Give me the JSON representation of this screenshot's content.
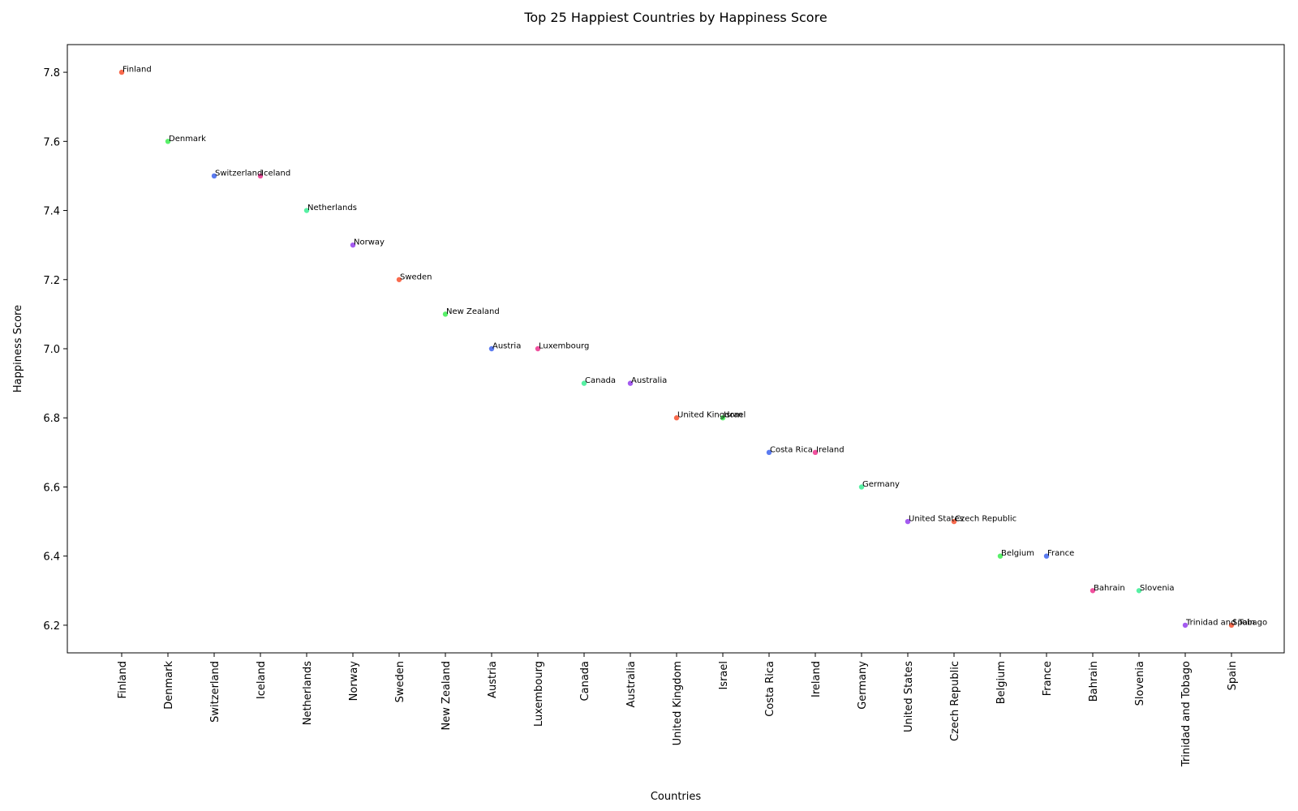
{
  "chart_data": {
    "type": "scatter",
    "title": "Top 25 Happiest Countries by Happiness Score",
    "xlabel": "Countries",
    "ylabel": "Happiness Score",
    "ylim": [
      6.12,
      7.88
    ],
    "yticks": [
      6.2,
      6.4,
      6.6,
      6.8,
      7.0,
      7.2,
      7.4,
      7.6,
      7.8
    ],
    "categories": [
      "Finland",
      "Denmark",
      "Switzerland",
      "Iceland",
      "Netherlands",
      "Norway",
      "Sweden",
      "New Zealand",
      "Austria",
      "Luxembourg",
      "Canada",
      "Australia",
      "United Kingdom",
      "Israel",
      "Costa Rica",
      "Ireland",
      "Germany",
      "United States",
      "Czech Republic",
      "Belgium",
      "France",
      "Bahrain",
      "Slovenia",
      "Trinidad and Tobago",
      "Spain"
    ],
    "points": [
      {
        "x": "Finland",
        "y": 7.8,
        "label": "Finland",
        "color": "#f96b4e"
      },
      {
        "x": "Denmark",
        "y": 7.6,
        "label": "Denmark",
        "color": "#59f06a"
      },
      {
        "x": "Switzerland",
        "y": 7.5,
        "label": "Switzerland",
        "color": "#5b7bf0"
      },
      {
        "x": "Iceland",
        "y": 7.5,
        "label": "Iceland",
        "color": "#f0519e"
      },
      {
        "x": "Netherlands",
        "y": 7.4,
        "label": "Netherlands",
        "color": "#57f0a4"
      },
      {
        "x": "Norway",
        "y": 7.3,
        "label": "Norway",
        "color": "#a45bf0"
      },
      {
        "x": "Sweden",
        "y": 7.2,
        "label": "Sweden",
        "color": "#f96b4e"
      },
      {
        "x": "New Zealand",
        "y": 7.1,
        "label": "New Zealand",
        "color": "#59f06a"
      },
      {
        "x": "Austria",
        "y": 7.0,
        "label": "Austria",
        "color": "#5b7bf0"
      },
      {
        "x": "Luxembourg",
        "y": 7.0,
        "label": "Luxembourg",
        "color": "#f0519e"
      },
      {
        "x": "Canada",
        "y": 6.9,
        "label": "Canada",
        "color": "#57f0a4"
      },
      {
        "x": "Australia",
        "y": 6.9,
        "label": "Australia",
        "color": "#a45bf0"
      },
      {
        "x": "United Kingdom",
        "y": 6.8,
        "label": "United Kingdom",
        "color": "#f96b4e"
      },
      {
        "x": "Israel",
        "y": 6.8,
        "label": "Israel",
        "color": "#59f06a"
      },
      {
        "x": "Costa Rica",
        "y": 6.7,
        "label": "Costa Rica",
        "color": "#5b7bf0"
      },
      {
        "x": "Ireland",
        "y": 6.7,
        "label": "Ireland",
        "color": "#f0519e"
      },
      {
        "x": "Germany",
        "y": 6.6,
        "label": "Germany",
        "color": "#57f0a4"
      },
      {
        "x": "United States",
        "y": 6.5,
        "label": "United States",
        "color": "#a45bf0"
      },
      {
        "x": "Czech Republic",
        "y": 6.5,
        "label": "Czech Republic",
        "color": "#f96b4e"
      },
      {
        "x": "Belgium",
        "y": 6.4,
        "label": "Belgium",
        "color": "#59f06a"
      },
      {
        "x": "France",
        "y": 6.4,
        "label": "France",
        "color": "#5b7bf0"
      },
      {
        "x": "Bahrain",
        "y": 6.3,
        "label": "Bahrain",
        "color": "#f0519e"
      },
      {
        "x": "Slovenia",
        "y": 6.3,
        "label": "Slovenia",
        "color": "#57f0a4"
      },
      {
        "x": "Trinidad and Tobago",
        "y": 6.2,
        "label": "Trinidad and Tobago",
        "color": "#a45bf0"
      },
      {
        "x": "Spain",
        "y": 6.2,
        "label": "Spain",
        "color": "#f96b4e"
      }
    ],
    "grid": false,
    "legend": "none"
  }
}
